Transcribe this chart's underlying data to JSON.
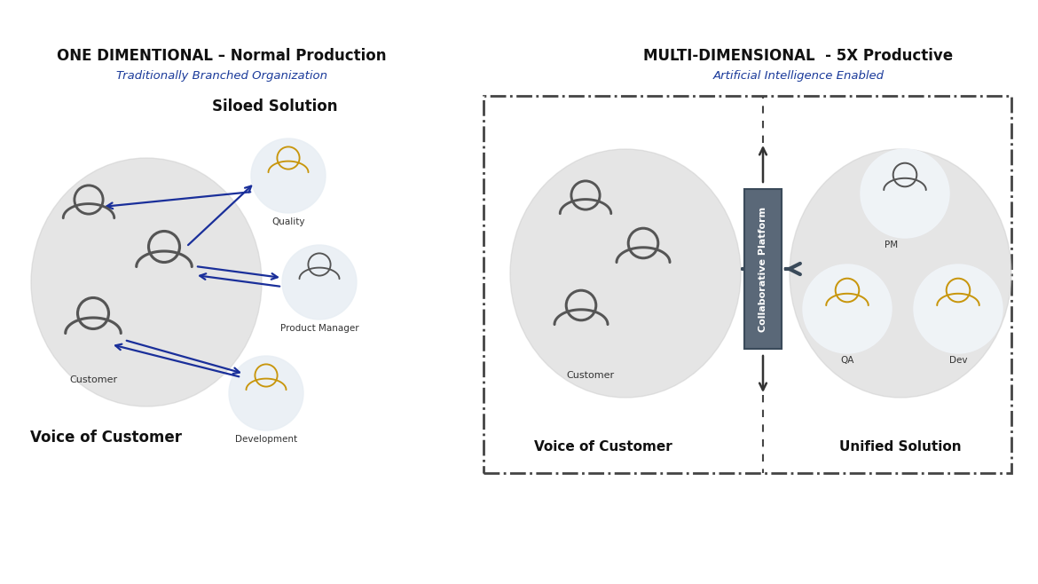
{
  "bg_color": "#ffffff",
  "left_title": "ONE DIMENTIONAL – Normal Production",
  "left_subtitle": "Traditionally Branched Organization",
  "left_label_top": "Siloed Solution",
  "left_label_bottom": "Voice of Customer",
  "right_title": "MULTI-DIMENSIONAL  - 5X Productive",
  "right_subtitle": "Artificial Intelligence Enabled",
  "right_label_bottom_left": "Voice of Customer",
  "right_label_bottom_right": "Unified Solution",
  "collab_text": "Collaborative Platform",
  "person_gray": "#555555",
  "person_gold": "#C8960C",
  "circle_bg_dark": "#CCCCCC",
  "circle_bg_light": "#E8EEF4",
  "circle_bg_white": "#F0F4F8",
  "box_border": "#444444",
  "arrow_blue": "#1A2F9A",
  "collab_box_color": "#5A6878",
  "collab_arrow_color": "#3A4A5A"
}
